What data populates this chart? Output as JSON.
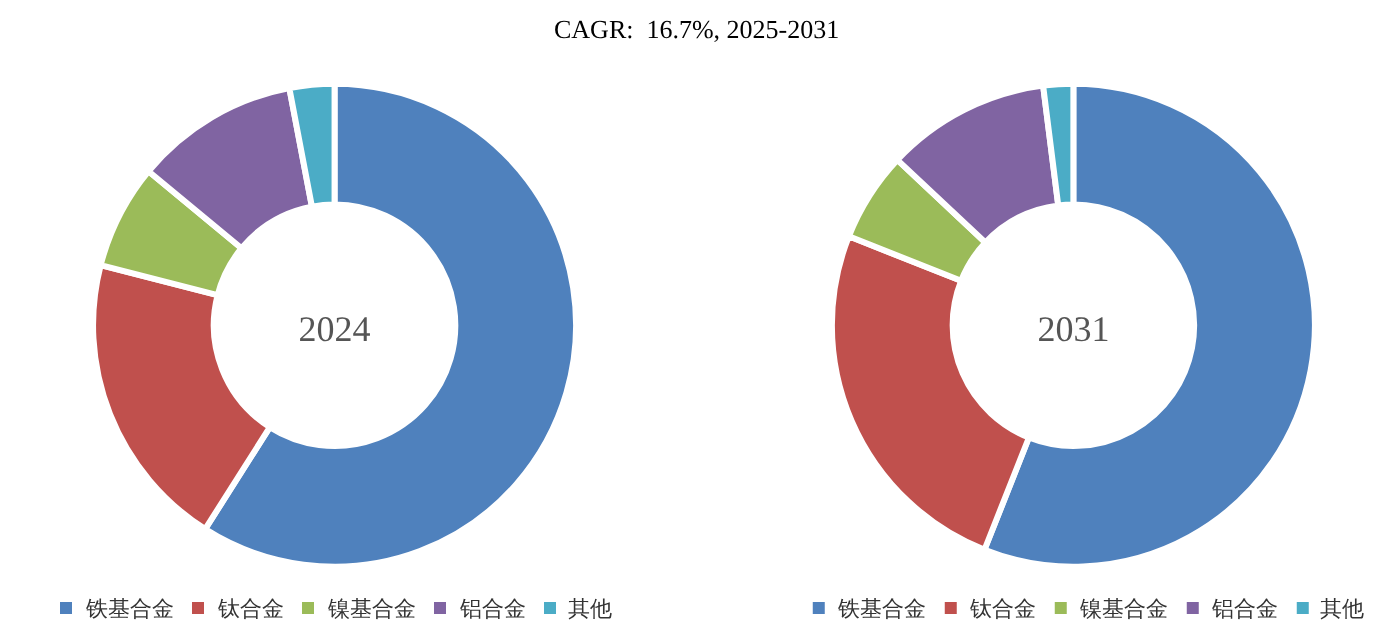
{
  "chart_data": [
    {
      "type": "donut",
      "title": "CAGR:  16.7%, 2025-2031",
      "annotations": [
        "2024"
      ],
      "categories": [
        "铁基合金",
        "钛合金",
        "镍基合金",
        "铝合金",
        "其他"
      ],
      "values": [
        59,
        20,
        7,
        11,
        3
      ],
      "colors": [
        "#4f81bd",
        "#c0504d",
        "#9bbb59",
        "#8064a2",
        "#4bacc6"
      ],
      "legend": "bottom"
    },
    {
      "type": "donut",
      "annotations": [
        "2031"
      ],
      "categories": [
        "铁基合金",
        "钛合金",
        "镍基合金",
        "铝合金",
        "其他"
      ],
      "values": [
        56,
        25,
        6,
        11,
        2
      ],
      "colors": [
        "#4f81bd",
        "#c0504d",
        "#9bbb59",
        "#8064a2",
        "#4bacc6"
      ],
      "legend": "bottom"
    }
  ]
}
